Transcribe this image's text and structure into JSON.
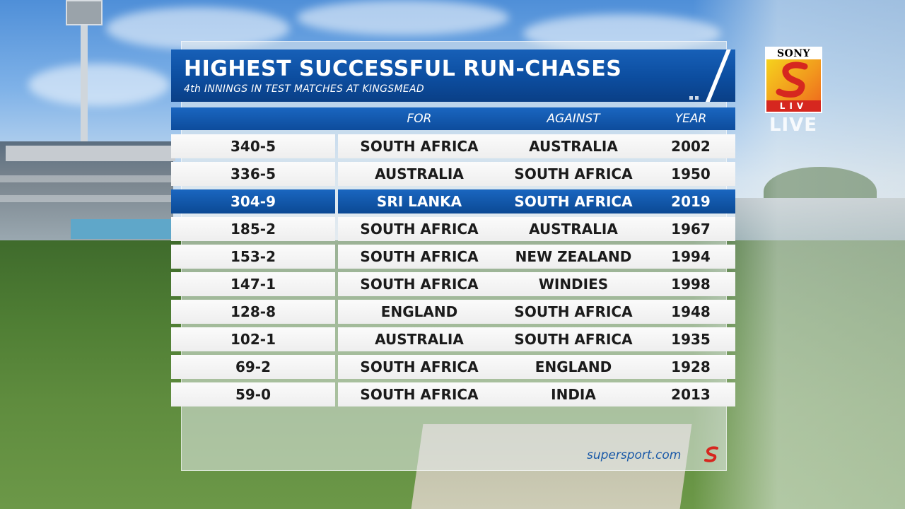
{
  "graphic": {
    "title": "HIGHEST SUCCESSFUL RUN-CHASES",
    "subtitle": "4th INNINGS IN TEST MATCHES AT KINGSMEAD",
    "columns": {
      "score": "",
      "for": "FOR",
      "against": "AGAINST",
      "year": "YEAR"
    },
    "rows": [
      {
        "score": "340-5",
        "for": "SOUTH AFRICA",
        "against": "AUSTRALIA",
        "year": "2002",
        "highlighted": false
      },
      {
        "score": "336-5",
        "for": "AUSTRALIA",
        "against": "SOUTH AFRICA",
        "year": "1950",
        "highlighted": false
      },
      {
        "score": "304-9",
        "for": "SRI LANKA",
        "against": "SOUTH AFRICA",
        "year": "2019",
        "highlighted": true
      },
      {
        "score": "185-2",
        "for": "SOUTH AFRICA",
        "against": "AUSTRALIA",
        "year": "1967",
        "highlighted": false
      },
      {
        "score": "153-2",
        "for": "SOUTH AFRICA",
        "against": "NEW ZEALAND",
        "year": "1994",
        "highlighted": false
      },
      {
        "score": "147-1",
        "for": "SOUTH AFRICA",
        "against": "WINDIES",
        "year": "1998",
        "highlighted": false
      },
      {
        "score": "128-8",
        "for": "ENGLAND",
        "against": "SOUTH AFRICA",
        "year": "1948",
        "highlighted": false
      },
      {
        "score": "102-1",
        "for": "AUSTRALIA",
        "against": "SOUTH AFRICA",
        "year": "1935",
        "highlighted": false
      },
      {
        "score": "69-2",
        "for": "SOUTH AFRICA",
        "against": "ENGLAND",
        "year": "1928",
        "highlighted": false
      },
      {
        "score": "59-0",
        "for": "SOUTH AFRICA",
        "against": "INDIA",
        "year": "2013",
        "highlighted": false
      }
    ],
    "footer": {
      "brand": "supersport.com",
      "logo_icon": "supersport-s-logo"
    }
  },
  "channel": {
    "logo_top": "SONY",
    "logo_bottom": "LIV",
    "status": "LIVE",
    "logo_icon": "sony-liv-logo"
  },
  "colors": {
    "panel_blue": "#0c4d9f",
    "highlight_blue": "#1a66c0",
    "row_bg": "#f4f4f4",
    "text_dark": "#1b1b1b",
    "brand_blue": "#1b5aa8",
    "liv_red": "#d6271f"
  }
}
